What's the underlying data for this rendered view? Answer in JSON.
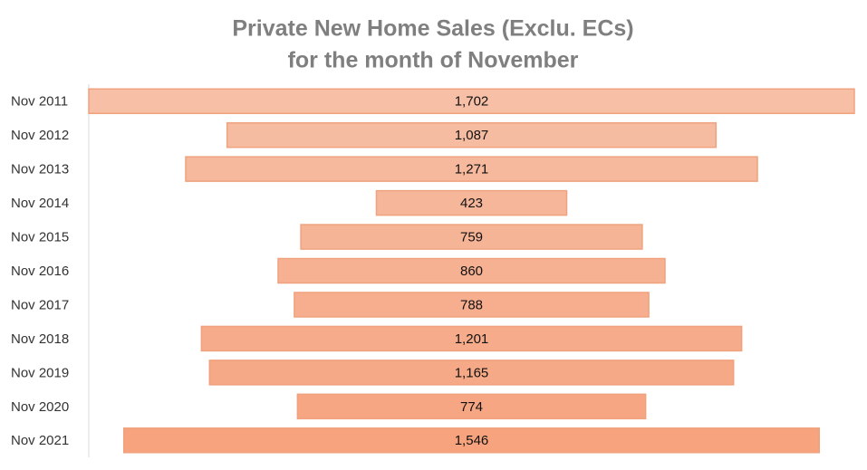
{
  "chart_data": {
    "type": "funnel",
    "title": "Private  New Home Sales (Exclu. ECs)",
    "subtitle": "for the month of November",
    "categories": [
      "Nov 2011",
      "Nov 2012",
      "Nov 2013",
      "Nov 2014",
      "Nov 2015",
      "Nov 2016",
      "Nov 2017",
      "Nov 2018",
      "Nov 2019",
      "Nov 2020",
      "Nov 2021"
    ],
    "values": [
      1702,
      1087,
      1271,
      423,
      759,
      860,
      788,
      1201,
      1165,
      774,
      1546
    ],
    "value_labels": [
      "1,702",
      "1,087",
      "1,271",
      "423",
      "759",
      "860",
      "788",
      "1,201",
      "1,165",
      "774",
      "1,546"
    ],
    "colors": [
      "#f6bfa6",
      "#f6bca1",
      "#f6b99d",
      "#f6b69a",
      "#f6b496",
      "#f6b192",
      "#f6ae8e",
      "#f6ab8a",
      "#f6a986",
      "#f6a682",
      "#f6a37e"
    ]
  }
}
